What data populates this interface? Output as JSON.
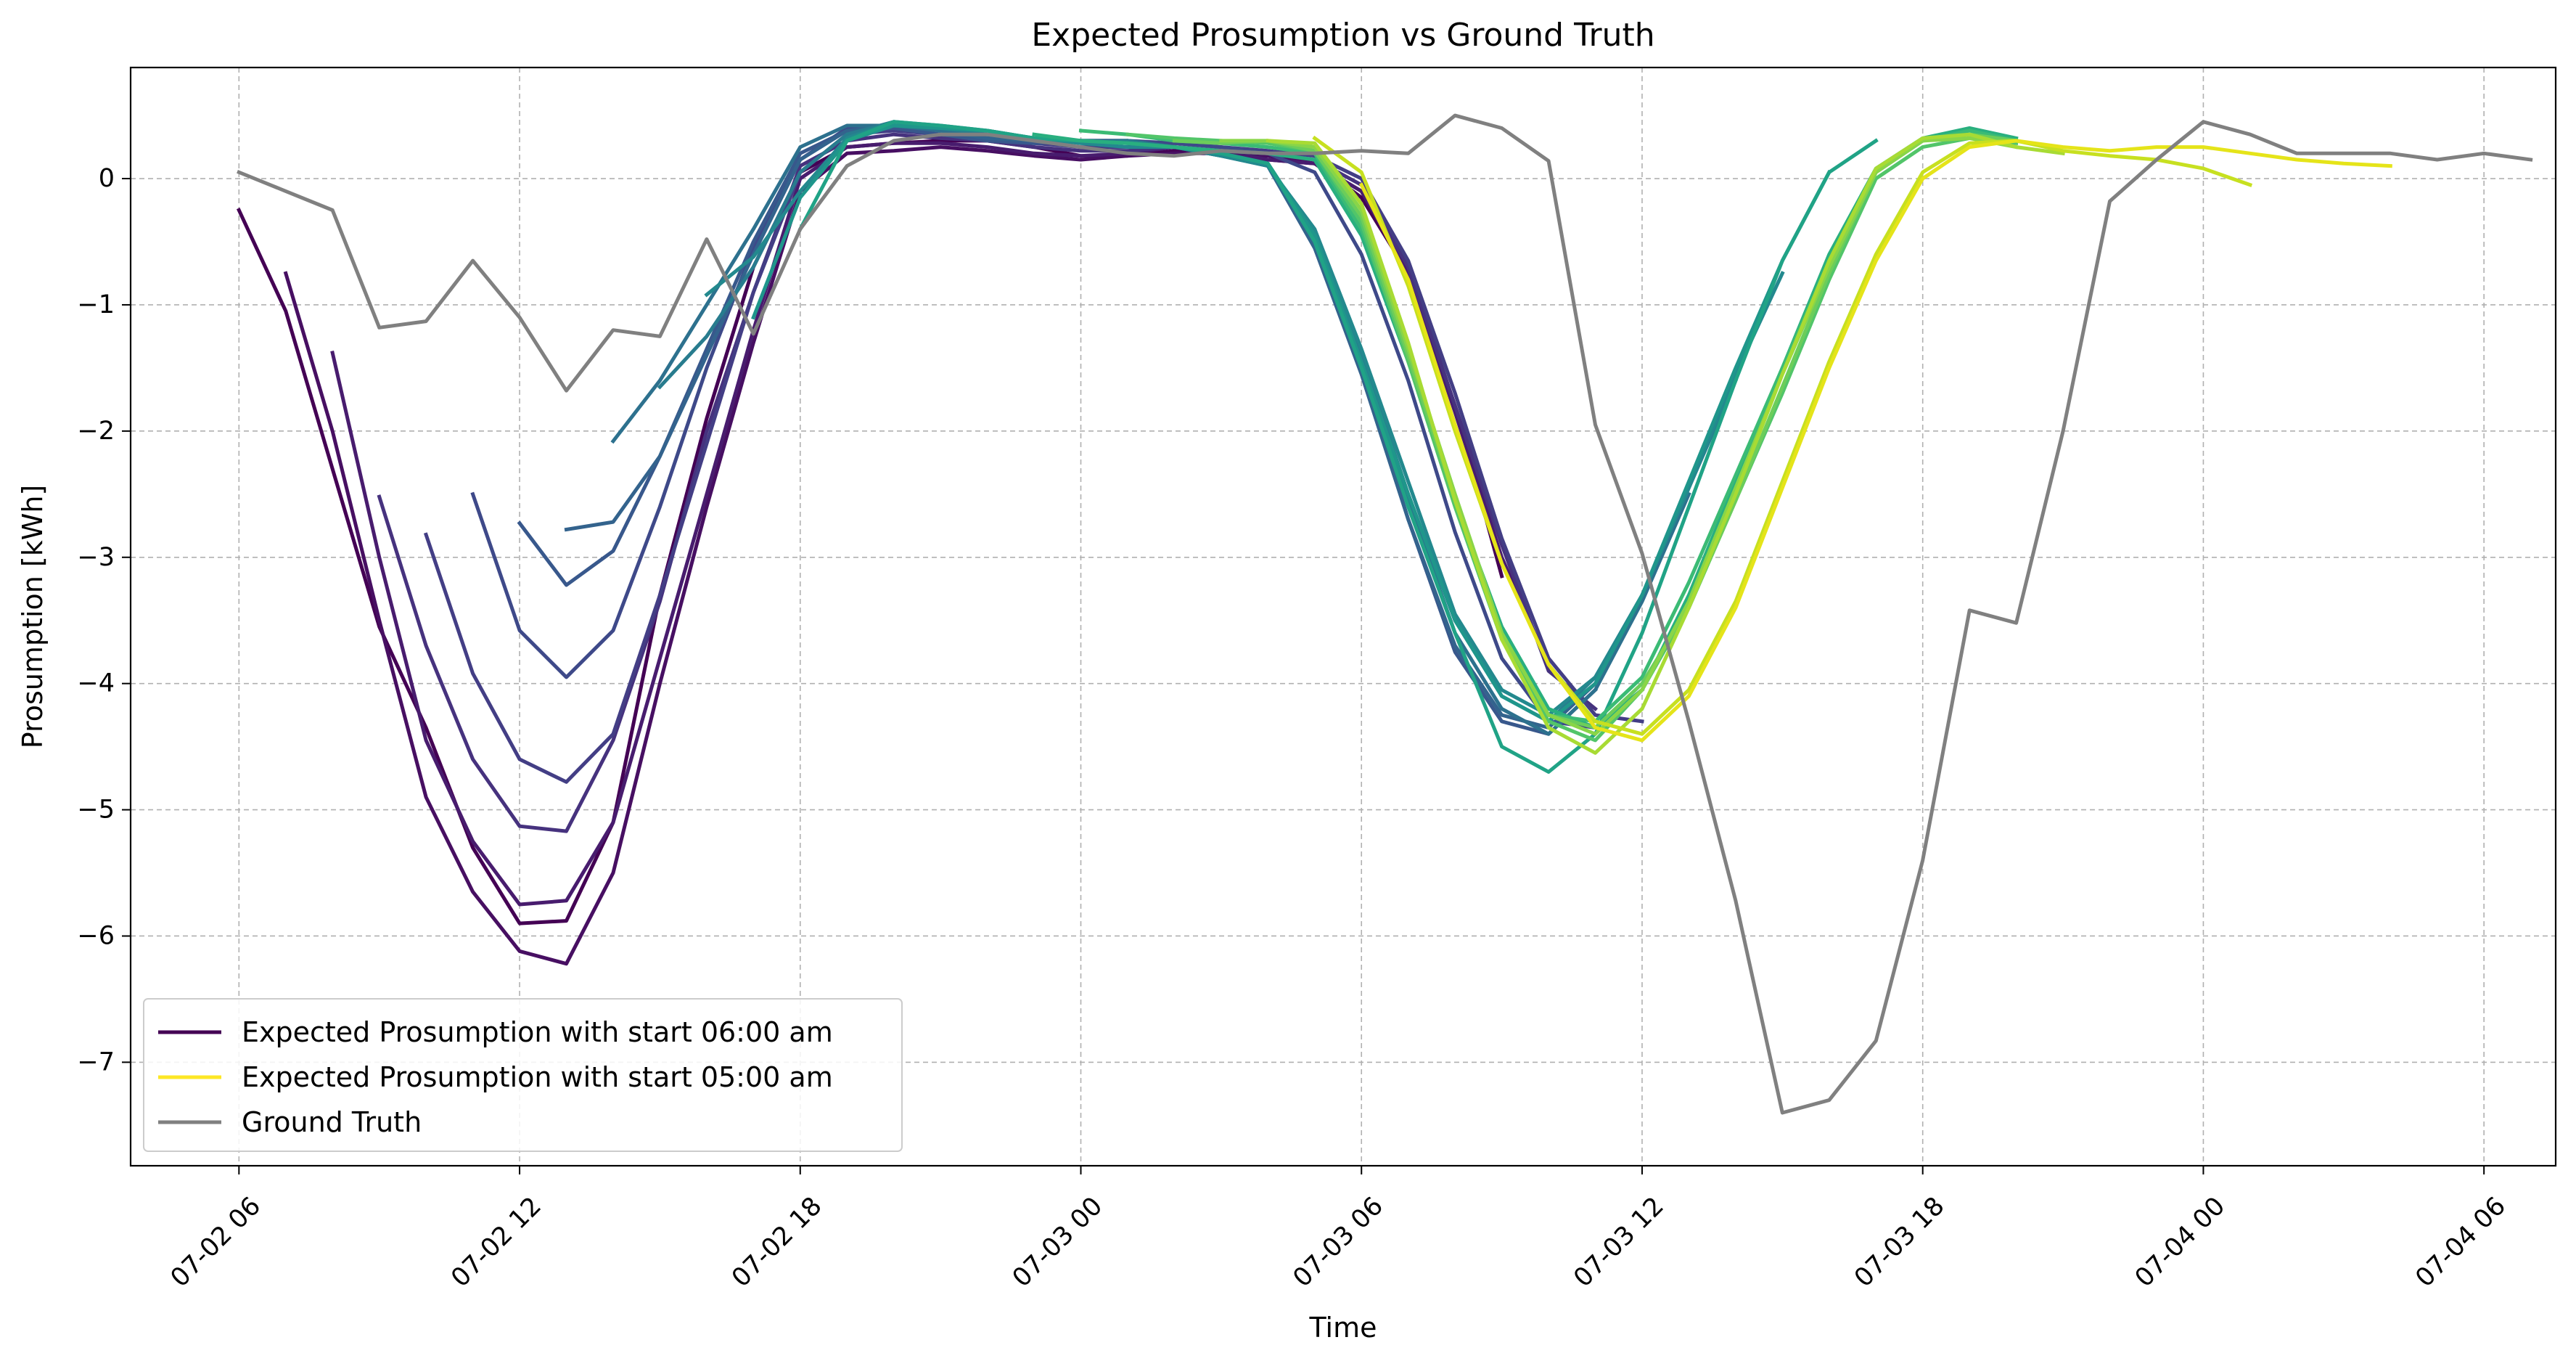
{
  "chart_data": {
    "type": "line",
    "title": "Expected Prosumption vs Ground Truth",
    "xlabel": "Time",
    "ylabel": "Prosumption [kWh]",
    "x_unit": "hour",
    "xlim": [
      "2024-07-02 03:41",
      "2024-07-04 07:32"
    ],
    "ylim": [
      -7.82,
      0.88
    ],
    "grid": true,
    "legend_position": "lower-left",
    "x_ticks": [
      {
        "value": "2024-07-02 06:00",
        "label": "07-02 06"
      },
      {
        "value": "2024-07-02 12:00",
        "label": "07-02 12"
      },
      {
        "value": "2024-07-02 18:00",
        "label": "07-02 18"
      },
      {
        "value": "2024-07-03 00:00",
        "label": "07-03 00"
      },
      {
        "value": "2024-07-03 06:00",
        "label": "07-03 06"
      },
      {
        "value": "2024-07-03 12:00",
        "label": "07-03 12"
      },
      {
        "value": "2024-07-03 18:00",
        "label": "07-03 18"
      },
      {
        "value": "2024-07-04 00:00",
        "label": "07-04 00"
      },
      {
        "value": "2024-07-04 06:00",
        "label": "07-04 06"
      }
    ],
    "y_ticks": [
      {
        "value": 0,
        "label": "0"
      },
      {
        "value": -1,
        "label": "−1"
      },
      {
        "value": -2,
        "label": "−2"
      },
      {
        "value": -3,
        "label": "−3"
      },
      {
        "value": -4,
        "label": "−4"
      },
      {
        "value": -5,
        "label": "−5"
      },
      {
        "value": -6,
        "label": "−6"
      },
      {
        "value": -7,
        "label": "−7"
      }
    ],
    "legend": [
      {
        "label": "Expected Prosumption with start 06:00 am",
        "color": "#440154"
      },
      {
        "label": "Expected Prosumption with start 05:00 am",
        "color": "#fde725"
      },
      {
        "label": "Ground Truth",
        "color": "#808080"
      }
    ],
    "series": [
      {
        "start": "2024-07-02 06:00",
        "color": "#440154",
        "y": [
          -0.25,
          -1.05,
          -2.3,
          -3.55,
          -4.35,
          -5.3,
          -5.9,
          -5.88,
          -5.1,
          -3.3,
          -1.9,
          -0.7,
          0.05,
          0.25,
          0.28,
          0.3,
          0.3,
          0.25,
          0.18,
          0.18,
          0.22,
          0.2,
          0.15,
          0.12,
          -0.15,
          -0.75,
          -1.8,
          -3.15
        ]
      },
      {
        "start": "2024-07-02 07:00",
        "color": "#470f62",
        "y": [
          -0.75,
          -2.0,
          -3.5,
          -4.9,
          -5.65,
          -6.12,
          -6.22,
          -5.5,
          -4.0,
          -2.6,
          -1.3,
          -0.1,
          0.2,
          0.22,
          0.25,
          0.22,
          0.18,
          0.15,
          0.18,
          0.2,
          0.2,
          0.18,
          0.12,
          -0.1,
          -0.7,
          -1.8,
          -2.9
        ]
      },
      {
        "start": "2024-07-02 08:00",
        "color": "#481c6e",
        "y": [
          -1.38,
          -3.0,
          -4.45,
          -5.25,
          -5.75,
          -5.72,
          -5.1,
          -3.8,
          -2.5,
          -1.2,
          0.0,
          0.25,
          0.28,
          0.28,
          0.25,
          0.2,
          0.18,
          0.2,
          0.25,
          0.22,
          0.15,
          0.12,
          -0.1,
          -0.75,
          -1.85,
          -3.0,
          -3.85
        ]
      },
      {
        "start": "2024-07-02 09:00",
        "color": "#46327e",
        "y": [
          -2.52,
          -3.7,
          -4.6,
          -5.13,
          -5.17,
          -4.45,
          -3.35,
          -2.0,
          -0.9,
          0.1,
          0.3,
          0.35,
          0.32,
          0.3,
          0.25,
          0.22,
          0.22,
          0.25,
          0.22,
          0.2,
          0.15,
          -0.05,
          -0.7,
          -1.8,
          -2.9,
          -3.9,
          -4.2
        ]
      },
      {
        "start": "2024-07-02 10:00",
        "color": "#433e85",
        "y": [
          -2.82,
          -3.92,
          -4.6,
          -4.78,
          -4.4,
          -3.3,
          -2.1,
          -0.9,
          0.05,
          0.35,
          0.38,
          0.35,
          0.3,
          0.28,
          0.25,
          0.25,
          0.28,
          0.25,
          0.22,
          0.18,
          0.0,
          -0.65,
          -1.7,
          -2.85,
          -3.8,
          -4.25,
          -4.3
        ]
      },
      {
        "start": "2024-07-02 11:00",
        "color": "#3e4989",
        "y": [
          -2.5,
          -3.58,
          -3.95,
          -3.58,
          -2.6,
          -1.5,
          -0.55,
          0.15,
          0.4,
          0.4,
          0.35,
          0.32,
          0.28,
          0.3,
          0.3,
          0.28,
          0.25,
          0.2,
          0.05,
          -0.6,
          -1.6,
          -2.8,
          -3.8,
          -4.3,
          -4.35,
          -4.05
        ]
      },
      {
        "start": "2024-07-02 12:00",
        "color": "#38588c",
        "y": [
          -2.73,
          -3.22,
          -2.95,
          -2.2,
          -1.35,
          -0.5,
          0.2,
          0.38,
          0.4,
          0.35,
          0.3,
          0.28,
          0.3,
          0.3,
          0.25,
          0.2,
          0.1,
          -0.55,
          -1.5,
          -2.7,
          -3.75,
          -4.3,
          -4.4,
          -4.05
        ]
      },
      {
        "start": "2024-07-02 13:00",
        "color": "#33638d",
        "y": [
          -2.78,
          -2.72,
          -2.2,
          -1.4,
          -0.6,
          0.15,
          0.38,
          0.42,
          0.38,
          0.32,
          0.3,
          0.3,
          0.3,
          0.25,
          0.2,
          0.1,
          -0.55,
          -1.55,
          -2.7,
          -3.7,
          -4.25,
          -4.35,
          -4.0,
          -3.3
        ]
      },
      {
        "start": "2024-07-02 14:00",
        "color": "#2d718e",
        "y": [
          -2.08,
          -1.6,
          -1.0,
          -0.4,
          0.25,
          0.42,
          0.42,
          0.38,
          0.35,
          0.3,
          0.3,
          0.28,
          0.25,
          0.18,
          0.1,
          -0.5,
          -1.45,
          -2.55,
          -3.6,
          -4.2,
          -4.4,
          -4.05,
          -3.35,
          -2.5
        ]
      },
      {
        "start": "2024-07-02 15:00",
        "color": "#287c8e",
        "y": [
          -1.65,
          -1.25,
          -0.7,
          0.05,
          0.35,
          0.45,
          0.4,
          0.35,
          0.32,
          0.28,
          0.3,
          0.25,
          0.18,
          0.12,
          -0.45,
          -1.4,
          -2.5,
          -3.5,
          -4.1,
          -4.3,
          -3.95,
          -3.3,
          -2.45,
          -1.6
        ]
      },
      {
        "start": "2024-07-02 16:00",
        "color": "#23898e",
        "y": [
          -0.92,
          -0.62,
          -0.1,
          0.32,
          0.45,
          0.42,
          0.38,
          0.32,
          0.28,
          0.25,
          0.25,
          0.18,
          0.1,
          -0.4,
          -1.35,
          -2.4,
          -3.45,
          -4.05,
          -4.25,
          -3.95,
          -3.3,
          -2.45,
          -1.55,
          -0.75
        ]
      },
      {
        "start": "2024-07-02 17:00",
        "color": "#1f968b",
        "y": [
          -1.1,
          -0.15,
          0.3,
          0.42,
          0.4,
          0.38,
          0.32,
          0.3,
          0.28,
          0.25,
          0.2,
          0.12,
          -0.45,
          -1.45,
          -2.5,
          -3.5,
          -4.1,
          -4.3,
          -4.0,
          -3.3,
          -2.4,
          -1.5,
          -0.65,
          0.05
        ]
      },
      {
        "start": "2024-07-02 18:00",
        "color": "#20a386",
        "y": [
          -0.4,
          0.3,
          0.45,
          0.42,
          0.38,
          0.32,
          0.3,
          0.28,
          0.25,
          0.2,
          0.12,
          -0.5,
          -1.5,
          -2.6,
          -3.6,
          -4.5,
          -4.7,
          -4.4,
          -3.6,
          -2.6,
          -1.6,
          -0.65,
          0.05,
          0.3
        ]
      },
      {
        "start": "2024-07-02 23:00",
        "color": "#29af7f",
        "y": [
          0.35,
          0.3,
          0.28,
          0.25,
          0.22,
          0.2,
          0.15,
          -0.45,
          -1.45,
          -2.55,
          -3.55,
          -4.2,
          -4.35,
          -4.05,
          -3.3,
          -2.4,
          -1.5,
          -0.6,
          0.08,
          0.32,
          0.4,
          0.32
        ]
      },
      {
        "start": "2024-07-03 00:00",
        "color": "#3bbb75",
        "y": [
          0.38,
          0.35,
          0.3,
          0.28,
          0.25,
          0.2,
          -0.4,
          -1.4,
          -2.55,
          -3.6,
          -4.25,
          -4.3,
          -3.95,
          -3.2,
          -2.35,
          -1.5,
          -0.65,
          0.05,
          0.3,
          0.38,
          0.3
        ]
      },
      {
        "start": "2024-07-03 01:00",
        "color": "#52c569",
        "y": [
          0.35,
          0.32,
          0.3,
          0.28,
          0.22,
          -0.35,
          -1.45,
          -2.6,
          -3.65,
          -4.3,
          -4.45,
          -4.05,
          -3.4,
          -2.55,
          -1.7,
          -0.8,
          0.0,
          0.25,
          0.32,
          0.28
        ]
      },
      {
        "start": "2024-07-03 02:00",
        "color": "#6ccd5a",
        "y": [
          0.3,
          0.28,
          0.3,
          0.22,
          -0.3,
          -1.4,
          -2.55,
          -3.6,
          -4.25,
          -4.35,
          -4.0,
          -3.4,
          -2.55,
          -1.65,
          -0.75,
          0.05,
          0.3,
          0.35,
          0.3
        ]
      },
      {
        "start": "2024-07-03 03:00",
        "color": "#89d548",
        "y": [
          0.3,
          0.3,
          0.25,
          -0.25,
          -1.35,
          -2.5,
          -3.6,
          -4.25,
          -4.4,
          -4.05,
          -3.35,
          -2.45,
          -1.55,
          -0.7,
          0.05,
          0.3,
          0.32,
          0.25
        ]
      },
      {
        "start": "2024-07-03 04:00",
        "color": "#a8db34",
        "y": [
          0.3,
          0.28,
          -0.2,
          -1.3,
          -2.55,
          -3.65,
          -4.35,
          -4.55,
          -4.2,
          -3.4,
          -2.5,
          -1.55,
          -0.65,
          0.08,
          0.32,
          0.35,
          0.25,
          0.2
        ]
      },
      {
        "start": "2024-07-03 05:00",
        "color": "#c7e020",
        "y": [
          0.32,
          0.05,
          -0.85,
          -2.0,
          -3.05,
          -3.85,
          -4.3,
          -4.4,
          -4.05,
          -3.35,
          -2.4,
          -1.45,
          -0.6,
          0.05,
          0.28,
          0.3,
          0.22,
          0.18,
          0.15,
          0.08,
          -0.05
        ]
      },
      {
        "start": "2024-07-03 06:00",
        "color": "#e5e419",
        "y": [
          -0.05,
          -0.8,
          -1.95,
          -3.05,
          -3.85,
          -4.35,
          -4.45,
          -4.1,
          -3.4,
          -2.45,
          -1.5,
          -0.65,
          0.0,
          0.25,
          0.3,
          0.25,
          0.22,
          0.25,
          0.25,
          0.2,
          0.15,
          0.12,
          0.1
        ]
      },
      {
        "start": "2024-07-02 06:00",
        "color": "#808080",
        "name": "Ground Truth",
        "y": [
          0.05,
          -0.1,
          -0.25,
          -1.18,
          -1.13,
          -0.65,
          -1.1,
          -1.68,
          -1.2,
          -1.25,
          -0.48,
          -1.23,
          -0.4,
          0.1,
          0.3,
          0.35,
          0.35,
          0.3,
          0.25,
          0.2,
          0.18,
          0.22,
          0.2,
          0.2,
          0.22,
          0.2,
          0.5,
          0.4,
          0.14,
          -1.95,
          -2.97,
          -4.3,
          -5.72,
          -7.4,
          -7.3,
          -6.83,
          -5.4,
          -3.42,
          -3.52,
          -2.0,
          -0.18,
          0.15,
          0.45,
          0.35,
          0.2,
          0.2,
          0.2,
          0.15,
          0.2,
          0.15
        ]
      }
    ]
  }
}
